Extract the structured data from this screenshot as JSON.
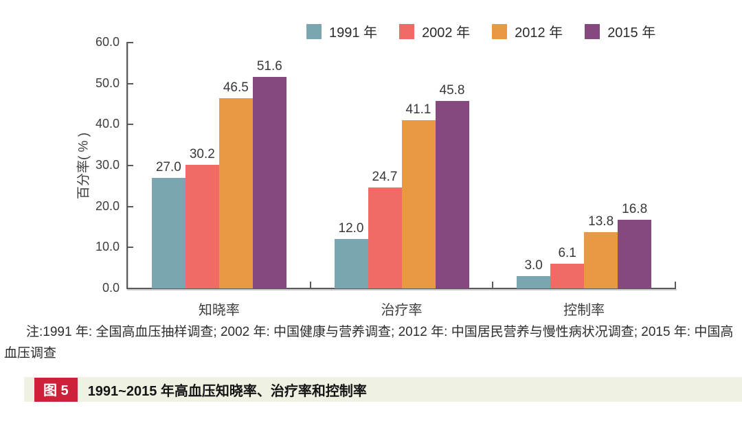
{
  "chart_data": {
    "type": "bar",
    "categories": [
      "知晓率",
      "治疗率",
      "控制率"
    ],
    "series": [
      {
        "name": "1991 年",
        "color": "#7AA6B2",
        "values": [
          27.0,
          12.0,
          3.0
        ]
      },
      {
        "name": "2002 年",
        "color": "#F16B66",
        "values": [
          30.2,
          24.7,
          6.1
        ]
      },
      {
        "name": "2012 年",
        "color": "#E89941",
        "values": [
          46.5,
          41.1,
          13.8
        ]
      },
      {
        "name": "2015 年",
        "color": "#85497F",
        "values": [
          51.6,
          45.8,
          16.8
        ]
      }
    ],
    "ylabel": "百分率( % )",
    "ylim": [
      0,
      60
    ],
    "ytick_labels": [
      "0.0",
      "10.0",
      "20.0",
      "30.0",
      "40.0",
      "50.0",
      "60.0"
    ],
    "legend_position": "top",
    "grid": false,
    "value_labels": true
  },
  "note": "注:1991 年: 全国高血压抽样调查; 2002 年: 中国健康与营养调查; 2012 年: 中国居民营养与慢性病状况调查; 2015 年: 中国高血压调查",
  "caption": {
    "badge": "图 5",
    "text": "1991~2015 年高血压知晓率、治疗率和控制率"
  },
  "colors": {
    "axis": "#5A5A5A",
    "caption_badge_bg": "#CE2139",
    "caption_strip_bg": "#EFF1E2"
  }
}
